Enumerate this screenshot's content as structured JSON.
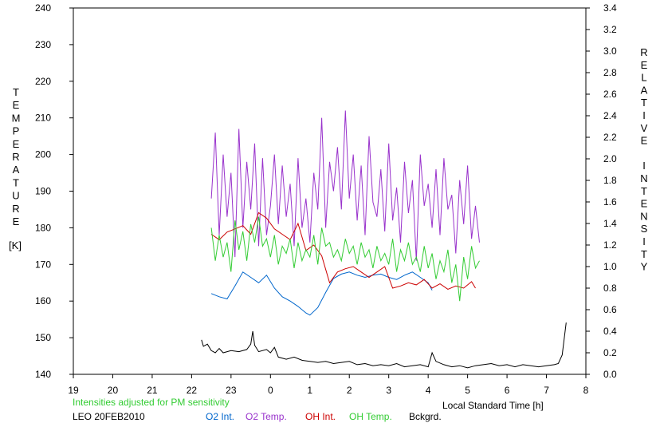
{
  "chart_data": {
    "type": "line",
    "station": "LEO 20FEB2010",
    "note": "Intensities adjusted for PM sensitivity",
    "xlabel": "Local Standard Time [h]",
    "xticks": [
      "19",
      "20",
      "21",
      "22",
      "23",
      "0",
      "1",
      "2",
      "3",
      "4",
      "5",
      "6",
      "7",
      "8"
    ],
    "xlim": [
      19,
      32
    ],
    "ylabel_left": "TEMPERATURE",
    "ylabel_left_unit": "[K]",
    "ylim_left": [
      140,
      240
    ],
    "yticks_left": [
      "140",
      "150",
      "160",
      "170",
      "180",
      "190",
      "200",
      "210",
      "220",
      "230",
      "240"
    ],
    "ylabel_right": "RELATIVE INTENSITY",
    "ylim_right": [
      0.0,
      3.4
    ],
    "yticks_right": [
      "0.0",
      "0.2",
      "0.4",
      "0.6",
      "0.8",
      "1.0",
      "1.2",
      "1.4",
      "1.6",
      "1.8",
      "2.0",
      "2.2",
      "2.4",
      "2.6",
      "2.8",
      "3.0",
      "3.2",
      "3.4"
    ],
    "grid": false,
    "legend_position": "bottom",
    "series": [
      {
        "name": "O2 Int.",
        "axis": "right",
        "color": "#0066cc",
        "x": [
          22.5,
          22.7,
          22.9,
          23.1,
          23.3,
          23.5,
          23.7,
          23.9,
          24.1,
          24.3,
          24.5,
          24.7,
          24.9,
          25.0,
          25.2,
          25.4,
          25.6,
          25.8,
          26.0,
          26.2,
          26.4,
          26.6,
          26.8,
          27.0,
          27.2,
          27.4,
          27.6,
          27.8,
          28.0,
          28.1
        ],
        "values": [
          0.75,
          0.72,
          0.7,
          0.82,
          0.95,
          0.9,
          0.85,
          0.92,
          0.8,
          0.72,
          0.68,
          0.63,
          0.57,
          0.55,
          0.62,
          0.76,
          0.89,
          0.93,
          0.95,
          0.92,
          0.9,
          0.92,
          0.93,
          0.9,
          0.88,
          0.92,
          0.95,
          0.9,
          0.85,
          0.78
        ]
      },
      {
        "name": "O2 Temp.",
        "axis": "left",
        "color": "#9933cc",
        "x": [
          22.5,
          22.6,
          22.7,
          22.8,
          22.9,
          23.0,
          23.1,
          23.2,
          23.3,
          23.4,
          23.5,
          23.6,
          23.7,
          23.8,
          23.9,
          24.0,
          24.1,
          24.2,
          24.3,
          24.4,
          24.5,
          24.6,
          24.7,
          24.8,
          24.9,
          25.0,
          25.1,
          25.2,
          25.3,
          25.4,
          25.5,
          25.6,
          25.7,
          25.8,
          25.9,
          26.0,
          26.1,
          26.2,
          26.3,
          26.4,
          26.5,
          26.6,
          26.7,
          26.8,
          26.9,
          27.0,
          27.1,
          27.2,
          27.3,
          27.4,
          27.5,
          27.6,
          27.7,
          27.8,
          27.9,
          28.0,
          28.1,
          28.2,
          28.3,
          28.4,
          28.5,
          28.6,
          28.7,
          28.8,
          28.9,
          29.0,
          29.1,
          29.2,
          29.3
        ],
        "values": [
          188,
          206,
          178,
          200,
          183,
          195,
          172,
          207,
          180,
          198,
          185,
          203,
          175,
          199,
          178,
          186,
          200,
          181,
          197,
          183,
          192,
          175,
          199,
          180,
          188,
          176,
          195,
          185,
          210,
          180,
          198,
          190,
          202,
          185,
          212,
          188,
          200,
          182,
          197,
          178,
          205,
          187,
          183,
          196,
          179,
          203,
          182,
          191,
          176,
          198,
          184,
          193,
          171,
          200,
          186,
          192,
          180,
          196,
          178,
          199,
          185,
          189,
          173,
          193,
          181,
          197,
          177,
          186,
          176
        ]
      },
      {
        "name": "OH Int.",
        "axis": "right",
        "color": "#cc0000",
        "x": [
          22.5,
          22.7,
          22.9,
          23.1,
          23.3,
          23.5,
          23.7,
          23.9,
          24.1,
          24.3,
          24.5,
          24.7,
          24.9,
          25.1,
          25.3,
          25.5,
          25.7,
          25.9,
          26.1,
          26.3,
          26.5,
          26.7,
          26.9,
          27.1,
          27.3,
          27.5,
          27.7,
          27.9,
          28.1,
          28.3,
          28.5,
          28.7,
          28.9,
          29.1,
          29.2
        ],
        "values": [
          1.3,
          1.25,
          1.32,
          1.35,
          1.38,
          1.3,
          1.5,
          1.45,
          1.35,
          1.3,
          1.25,
          1.4,
          1.15,
          1.2,
          1.1,
          0.85,
          0.95,
          0.98,
          1.0,
          0.95,
          0.9,
          0.95,
          1.0,
          0.8,
          0.82,
          0.85,
          0.83,
          0.88,
          0.8,
          0.84,
          0.79,
          0.82,
          0.8,
          0.86,
          0.8
        ]
      },
      {
        "name": "OH Temp.",
        "axis": "left",
        "color": "#33cc33",
        "x": [
          22.5,
          22.6,
          22.7,
          22.8,
          22.9,
          23.0,
          23.1,
          23.2,
          23.3,
          23.4,
          23.5,
          23.6,
          23.7,
          23.8,
          23.9,
          24.0,
          24.1,
          24.2,
          24.3,
          24.4,
          24.5,
          24.6,
          24.7,
          24.8,
          24.9,
          25.0,
          25.1,
          25.2,
          25.3,
          25.4,
          25.5,
          25.6,
          25.7,
          25.8,
          25.9,
          26.0,
          26.1,
          26.2,
          26.3,
          26.4,
          26.5,
          26.6,
          26.7,
          26.8,
          26.9,
          27.0,
          27.1,
          27.2,
          27.3,
          27.4,
          27.5,
          27.6,
          27.7,
          27.8,
          27.9,
          28.0,
          28.1,
          28.2,
          28.3,
          28.4,
          28.5,
          28.6,
          28.7,
          28.8,
          28.9,
          29.0,
          29.1,
          29.2,
          29.3
        ],
        "values": [
          180,
          171,
          178,
          172,
          176,
          168,
          182,
          174,
          179,
          171,
          181,
          176,
          183,
          175,
          177,
          172,
          178,
          170,
          175,
          173,
          177,
          169,
          176,
          171,
          174,
          172,
          178,
          170,
          180,
          175,
          176,
          172,
          174,
          171,
          177,
          173,
          175,
          170,
          176,
          172,
          174,
          169,
          175,
          171,
          173,
          170,
          177,
          168,
          174,
          171,
          176,
          170,
          172,
          168,
          175,
          169,
          173,
          166,
          171,
          168,
          174,
          165,
          170,
          160,
          172,
          166,
          175,
          169,
          171
        ]
      },
      {
        "name": "Bckgrd.",
        "axis": "right",
        "color": "#000000",
        "x": [
          22.25,
          22.3,
          22.4,
          22.5,
          22.6,
          22.7,
          22.8,
          23.0,
          23.2,
          23.4,
          23.5,
          23.55,
          23.6,
          23.7,
          23.9,
          24.0,
          24.1,
          24.2,
          24.4,
          24.6,
          24.8,
          25.0,
          25.2,
          25.4,
          25.6,
          25.8,
          26.0,
          26.2,
          26.4,
          26.6,
          26.8,
          27.0,
          27.2,
          27.4,
          27.6,
          27.8,
          28.0,
          28.1,
          28.2,
          28.4,
          28.6,
          28.8,
          29.0,
          29.2,
          29.4,
          29.6,
          29.8,
          30.0,
          30.2,
          30.4,
          30.6,
          30.8,
          31.0,
          31.2,
          31.3,
          31.4,
          31.5
        ],
        "values": [
          0.32,
          0.26,
          0.28,
          0.22,
          0.2,
          0.24,
          0.2,
          0.22,
          0.21,
          0.23,
          0.28,
          0.4,
          0.27,
          0.21,
          0.23,
          0.2,
          0.25,
          0.16,
          0.14,
          0.16,
          0.13,
          0.12,
          0.11,
          0.12,
          0.1,
          0.11,
          0.12,
          0.09,
          0.1,
          0.08,
          0.09,
          0.08,
          0.1,
          0.07,
          0.08,
          0.09,
          0.07,
          0.2,
          0.12,
          0.09,
          0.07,
          0.08,
          0.06,
          0.08,
          0.09,
          0.1,
          0.08,
          0.09,
          0.07,
          0.09,
          0.08,
          0.07,
          0.08,
          0.09,
          0.1,
          0.18,
          0.48
        ]
      }
    ]
  }
}
